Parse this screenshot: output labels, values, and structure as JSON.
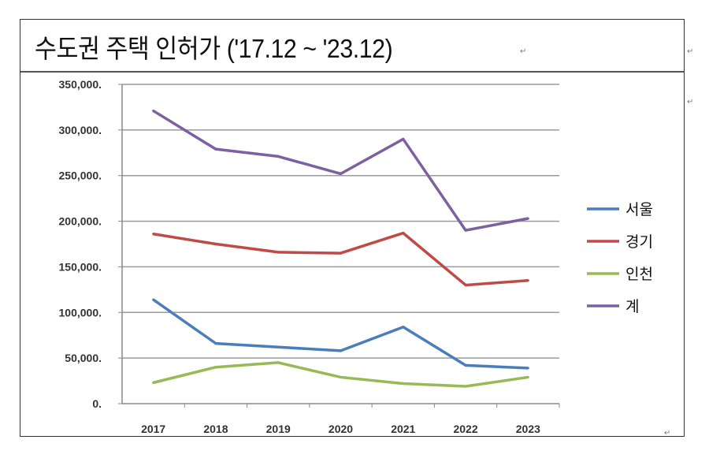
{
  "chart_data": {
    "type": "line",
    "title": "수도권 주택 인허가 ('17.12 ~ '23.12)",
    "xlabel": "",
    "ylabel": "",
    "categories": [
      "2017",
      "2018",
      "2019",
      "2020",
      "2021",
      "2022",
      "2023"
    ],
    "ylim": [
      0,
      350000
    ],
    "yticks": [
      "0.",
      "50,000.",
      "100,000.",
      "150,000.",
      "200,000.",
      "250,000.",
      "300,000.",
      "350,000."
    ],
    "grid": true,
    "legend_position": "right",
    "series": [
      {
        "name": "서울",
        "color": "#4A7EBB",
        "values": [
          114000,
          66000,
          62000,
          58000,
          84000,
          42000,
          39000
        ]
      },
      {
        "name": "경기",
        "color": "#BE4B48",
        "values": [
          186000,
          175000,
          166000,
          165000,
          187000,
          130000,
          135000
        ]
      },
      {
        "name": "인천",
        "color": "#98B954",
        "values": [
          23000,
          40000,
          45000,
          29000,
          22000,
          19000,
          29000
        ]
      },
      {
        "name": "계",
        "color": "#7D60A0",
        "values": [
          321000,
          279000,
          271000,
          252000,
          290000,
          190000,
          203000
        ]
      }
    ]
  }
}
